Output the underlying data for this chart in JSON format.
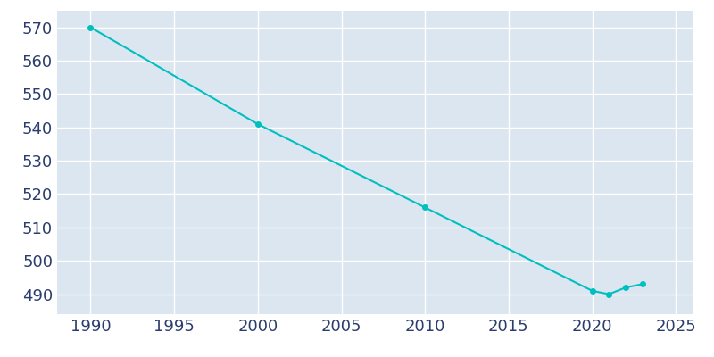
{
  "years": [
    1990,
    2000,
    2010,
    2020,
    2021,
    2022,
    2023
  ],
  "population": [
    570,
    541,
    516,
    491,
    490,
    492,
    493
  ],
  "line_color": "#00bfbf",
  "marker": "o",
  "marker_size": 4,
  "background_color": "#dce6f0",
  "figure_background": "#ffffff",
  "grid_color": "#ffffff",
  "tick_color": "#2b3d6e",
  "xlim": [
    1988,
    2026
  ],
  "ylim": [
    484,
    575
  ],
  "xticks": [
    1990,
    1995,
    2000,
    2005,
    2010,
    2015,
    2020,
    2025
  ],
  "yticks": [
    490,
    500,
    510,
    520,
    530,
    540,
    550,
    560,
    570
  ],
  "xlabel": "",
  "ylabel": "",
  "tick_fontsize": 13
}
